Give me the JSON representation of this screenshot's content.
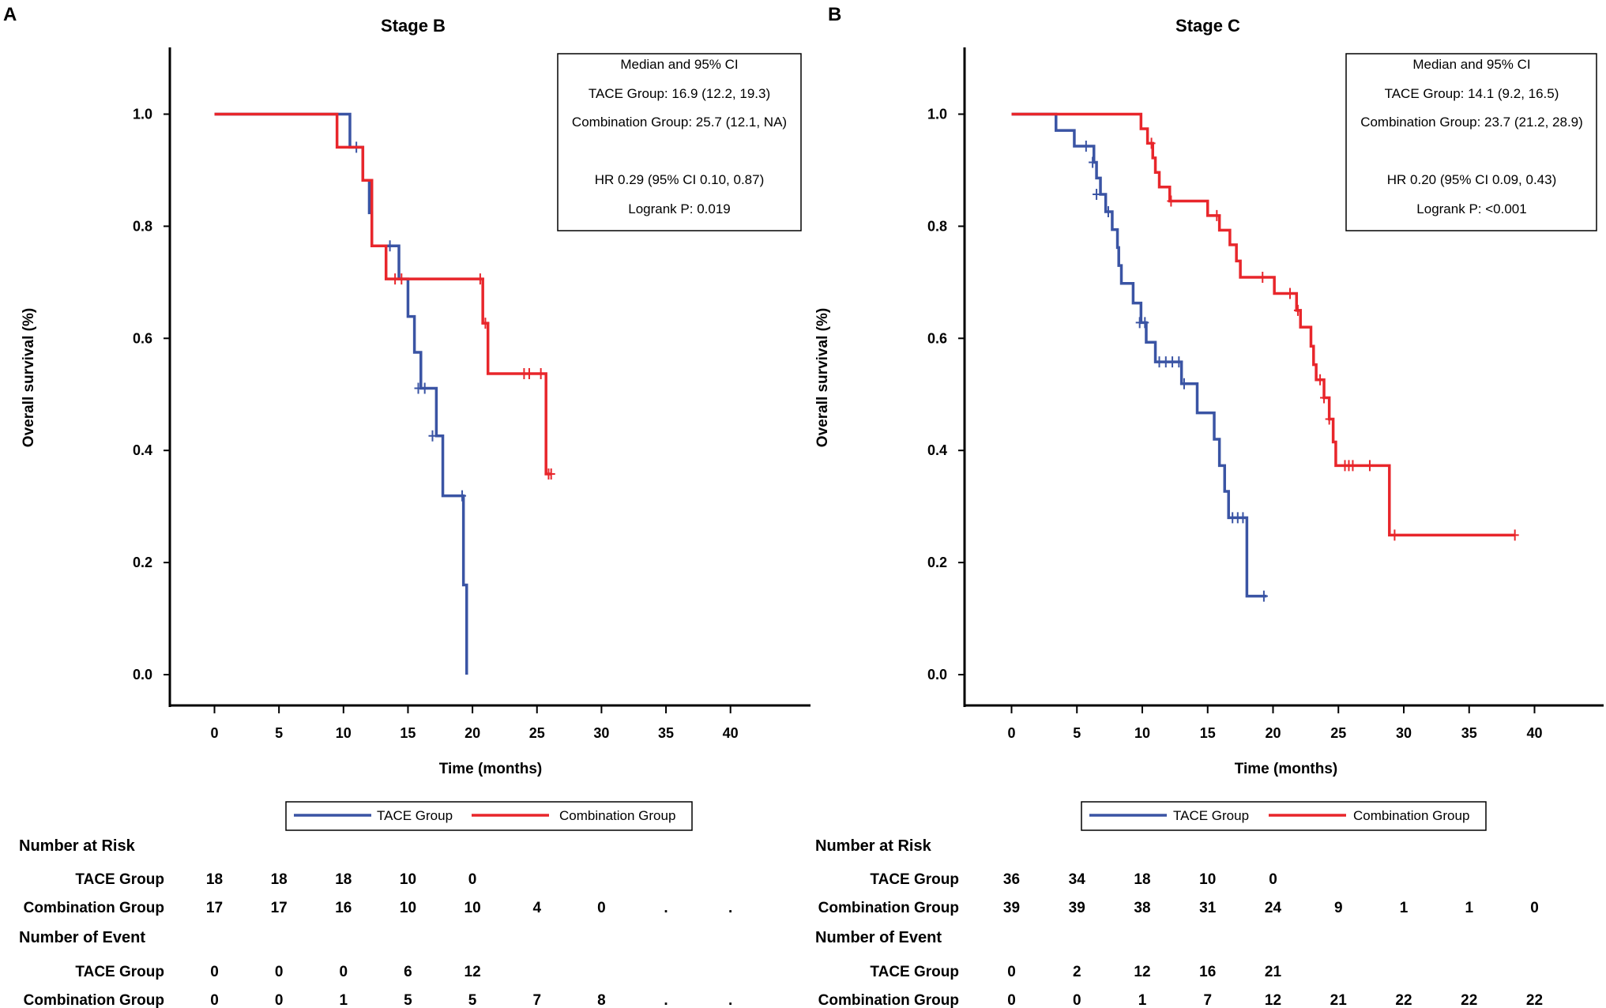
{
  "chart_data": [
    {
      "type": "line",
      "subtype": "kaplan-meier",
      "panel_label": "A",
      "title": "Stage B",
      "xlabel": "Time (months)",
      "ylabel": "Overall survival (%)",
      "xlim": [
        -3.5,
        45
      ],
      "ylim": [
        -0.06,
        1.1
      ],
      "xticks": [
        0,
        5,
        10,
        15,
        20,
        25,
        30,
        35,
        40
      ],
      "yticks": [
        0.0,
        0.2,
        0.4,
        0.6,
        0.8,
        1.0
      ],
      "xtick_labels": [
        "0",
        "5",
        "10",
        "15",
        "20",
        "25",
        "30",
        "35",
        "40"
      ],
      "ytick_labels": [
        "0.0",
        "0.2",
        "0.4",
        "0.6",
        "0.8",
        "1.0"
      ],
      "stats": {
        "header": "Median and 95% CI",
        "tace": "TACE Group: 16.9 (12.2, 19.3)",
        "combination": "Combination Group: 25.7 (12.1, NA)",
        "hr": "HR 0.29 (95% CI 0.10, 0.87)",
        "logrank": "Logrank P: 0.019"
      },
      "legend": [
        {
          "name": "TACE Group",
          "color": "#3a54a4"
        },
        {
          "name": "Combination Group",
          "color": "#e8262b"
        }
      ],
      "series": [
        {
          "name": "TACE Group",
          "color": "#3a54a4",
          "steps": [
            [
              0,
              1.0
            ],
            [
              10.5,
              0.941
            ],
            [
              11.5,
              0.882
            ],
            [
              12,
              0.824
            ],
            [
              12.2,
              0.765
            ],
            [
              14.3,
              0.706
            ],
            [
              15,
              0.639
            ],
            [
              15.5,
              0.575
            ],
            [
              16,
              0.511
            ],
            [
              17.2,
              0.426
            ],
            [
              17.7,
              0.319
            ],
            [
              19.3,
              0.16
            ],
            [
              19.55,
              0.0
            ]
          ],
          "end": 19.55,
          "censor": [
            [
              11,
              0.941
            ],
            [
              13.6,
              0.765
            ],
            [
              15.8,
              0.511
            ],
            [
              16.3,
              0.511
            ],
            [
              16.9,
              0.426
            ],
            [
              19.2,
              0.319
            ]
          ]
        },
        {
          "name": "Combination Group",
          "color": "#e8262b",
          "steps": [
            [
              0,
              1.0
            ],
            [
              9.5,
              0.941
            ],
            [
              11.5,
              0.882
            ],
            [
              12.2,
              0.765
            ],
            [
              13.3,
              0.706
            ],
            [
              20.8,
              0.627
            ],
            [
              21.2,
              0.537
            ],
            [
              25.7,
              0.358
            ]
          ],
          "end": 26.1,
          "censor": [
            [
              14,
              0.706
            ],
            [
              14.5,
              0.706
            ],
            [
              20.6,
              0.706
            ],
            [
              21,
              0.627
            ],
            [
              24,
              0.537
            ],
            [
              24.4,
              0.537
            ],
            [
              25.3,
              0.537
            ],
            [
              25.9,
              0.358
            ],
            [
              26.1,
              0.358
            ]
          ]
        }
      ],
      "risk_table": {
        "risk_heading": "Number at Risk",
        "event_heading": "Number of Event",
        "row_labels": [
          "TACE Group",
          "Combination Group"
        ],
        "risk_tace": [
          "18",
          "18",
          "18",
          "10",
          "0",
          "",
          "",
          "",
          ""
        ],
        "risk_combination": [
          "17",
          "17",
          "16",
          "10",
          "10",
          "4",
          "0",
          ".",
          "."
        ],
        "event_tace": [
          "0",
          "0",
          "0",
          "6",
          "12",
          "",
          "",
          "",
          ""
        ],
        "event_combination": [
          "0",
          "0",
          "1",
          "5",
          "5",
          "7",
          "8",
          ".",
          "."
        ]
      }
    },
    {
      "type": "line",
      "subtype": "kaplan-meier",
      "panel_label": "B",
      "title": "Stage C",
      "xlabel": "Time (months)",
      "ylabel": "Overall survival (%)",
      "xlim": [
        -3.5,
        45
      ],
      "ylim": [
        -0.06,
        1.1
      ],
      "xticks": [
        0,
        5,
        10,
        15,
        20,
        25,
        30,
        35,
        40
      ],
      "yticks": [
        0.0,
        0.2,
        0.4,
        0.6,
        0.8,
        1.0
      ],
      "xtick_labels": [
        "0",
        "5",
        "10",
        "15",
        "20",
        "25",
        "30",
        "35",
        "40"
      ],
      "ytick_labels": [
        "0.0",
        "0.2",
        "0.4",
        "0.6",
        "0.8",
        "1.0"
      ],
      "stats": {
        "header": "Median and 95% CI",
        "tace": "TACE Group: 14.1 (9.2, 16.5)",
        "combination": "Combination Group: 23.7 (21.2, 28.9)",
        "hr": "HR 0.20 (95% CI 0.09, 0.43)",
        "logrank": "Logrank P: <0.001"
      },
      "legend": [
        {
          "name": "TACE Group",
          "color": "#3a54a4"
        },
        {
          "name": "Combination Group",
          "color": "#e8262b"
        }
      ],
      "series": [
        {
          "name": "TACE Group",
          "color": "#3a54a4",
          "steps": [
            [
              0,
              1.0
            ],
            [
              3.4,
              0.971
            ],
            [
              4.8,
              0.943
            ],
            [
              6.3,
              0.914
            ],
            [
              6.5,
              0.886
            ],
            [
              6.8,
              0.857
            ],
            [
              7.2,
              0.826
            ],
            [
              7.7,
              0.794
            ],
            [
              8.1,
              0.762
            ],
            [
              8.2,
              0.73
            ],
            [
              8.4,
              0.698
            ],
            [
              9.3,
              0.663
            ],
            [
              9.9,
              0.628
            ],
            [
              10.3,
              0.593
            ],
            [
              11,
              0.558
            ],
            [
              13,
              0.519
            ],
            [
              14.2,
              0.467
            ],
            [
              15.5,
              0.42
            ],
            [
              15.9,
              0.373
            ],
            [
              16.3,
              0.327
            ],
            [
              16.6,
              0.28
            ],
            [
              18,
              0.14
            ]
          ],
          "end": 19.5,
          "censor": [
            [
              5.7,
              0.943
            ],
            [
              6.2,
              0.914
            ],
            [
              6.5,
              0.857
            ],
            [
              7.4,
              0.826
            ],
            [
              9.8,
              0.628
            ],
            [
              10.2,
              0.628
            ],
            [
              11.3,
              0.558
            ],
            [
              11.8,
              0.558
            ],
            [
              12.3,
              0.558
            ],
            [
              12.8,
              0.558
            ],
            [
              13.2,
              0.519
            ],
            [
              16.9,
              0.28
            ],
            [
              17.3,
              0.28
            ],
            [
              17.7,
              0.28
            ],
            [
              19.3,
              0.14
            ]
          ]
        },
        {
          "name": "Combination Group",
          "color": "#e8262b",
          "steps": [
            [
              0,
              1.0
            ],
            [
              9.9,
              0.974
            ],
            [
              10.4,
              0.948
            ],
            [
              10.8,
              0.922
            ],
            [
              11,
              0.896
            ],
            [
              11.3,
              0.87
            ],
            [
              12.1,
              0.845
            ],
            [
              15,
              0.819
            ],
            [
              15.9,
              0.793
            ],
            [
              16.7,
              0.767
            ],
            [
              17.2,
              0.738
            ],
            [
              17.5,
              0.709
            ],
            [
              20.1,
              0.68
            ],
            [
              21.8,
              0.65
            ],
            [
              22.1,
              0.62
            ],
            [
              22.9,
              0.586
            ],
            [
              23.1,
              0.553
            ],
            [
              23.3,
              0.526
            ],
            [
              23.9,
              0.494
            ],
            [
              24.3,
              0.456
            ],
            [
              24.6,
              0.415
            ],
            [
              24.8,
              0.373
            ],
            [
              28.9,
              0.249
            ]
          ],
          "end": 38.5,
          "censor": [
            [
              10.7,
              0.948
            ],
            [
              12.2,
              0.845
            ],
            [
              15.7,
              0.819
            ],
            [
              19.2,
              0.709
            ],
            [
              21.3,
              0.68
            ],
            [
              21.9,
              0.65
            ],
            [
              23.6,
              0.526
            ],
            [
              23.9,
              0.494
            ],
            [
              24.3,
              0.456
            ],
            [
              25.5,
              0.373
            ],
            [
              25.8,
              0.373
            ],
            [
              26.1,
              0.373
            ],
            [
              27.4,
              0.373
            ],
            [
              29.3,
              0.249
            ],
            [
              38.5,
              0.249
            ]
          ]
        }
      ],
      "risk_table": {
        "risk_heading": "Number at Risk",
        "event_heading": "Number of Event",
        "row_labels": [
          "TACE Group",
          "Combination Group"
        ],
        "risk_tace": [
          "36",
          "34",
          "18",
          "10",
          "0",
          "",
          "",
          "",
          ""
        ],
        "risk_combination": [
          "39",
          "39",
          "38",
          "31",
          "24",
          "9",
          "1",
          "1",
          "0"
        ],
        "event_tace": [
          "0",
          "2",
          "12",
          "16",
          "21",
          "",
          "",
          "",
          ""
        ],
        "event_combination": [
          "0",
          "0",
          "1",
          "7",
          "12",
          "21",
          "22",
          "22",
          "22"
        ]
      }
    }
  ]
}
